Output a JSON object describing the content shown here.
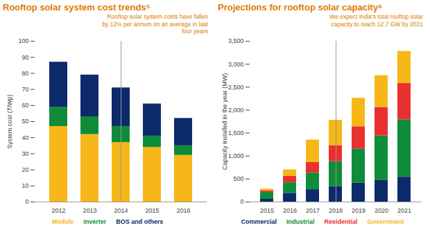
{
  "chart_data": [
    {
      "type": "bar",
      "title": "Rooftop solar system cost trends⁵",
      "annotation": "Rooftop solar system costs have fallen by 12% per annum on an average in last four years",
      "y_label": "System cost (₹/Wp)",
      "categories": [
        "2012",
        "2013",
        "2014",
        "2015",
        "2016"
      ],
      "series": [
        {
          "name": "Module",
          "color": "#f7b718",
          "values": [
            47,
            42,
            37,
            34,
            29
          ]
        },
        {
          "name": "Inverter",
          "color": "#0e8c3a",
          "values": [
            12,
            11,
            10,
            7,
            6
          ]
        },
        {
          "name": "BOS and others",
          "color": "#0d2a6b",
          "values": [
            28,
            26,
            24,
            20,
            17
          ]
        }
      ],
      "stacked": true,
      "ylim": [
        0,
        100
      ],
      "yticks": [
        0,
        10,
        20,
        30,
        40,
        50,
        60,
        70,
        80,
        90,
        100
      ],
      "grid": false,
      "legend": "bottom"
    },
    {
      "type": "bar",
      "title": "Projections for rooftop solar capacity⁶",
      "annotation": "We expect India's total rooftop solar capacity to reach 12.7 GW by 2021",
      "y_label": "Capacity installed in the year (MW)",
      "categories": [
        "2015",
        "2016",
        "2017",
        "2018",
        "2019",
        "2020",
        "2021"
      ],
      "series": [
        {
          "name": "Commercial",
          "color": "#0d2a6b",
          "values": [
            60,
            190,
            270,
            340,
            410,
            470,
            540
          ]
        },
        {
          "name": "Industrial",
          "color": "#0e8c3a",
          "values": [
            150,
            230,
            360,
            540,
            740,
            970,
            1250
          ]
        },
        {
          "name": "Residential",
          "color": "#e8312f",
          "values": [
            30,
            140,
            230,
            350,
            490,
            620,
            790
          ]
        },
        {
          "name": "Government",
          "color": "#f7b718",
          "values": [
            40,
            140,
            490,
            550,
            620,
            690,
            700
          ]
        }
      ],
      "stacked": true,
      "ylim": [
        0,
        3500
      ],
      "yticks": [
        0,
        500,
        {
          "value": 1000,
          "label": "1,000"
        },
        {
          "value": 1500,
          "label": "1,500"
        },
        {
          "value": 2000,
          "label": "2,000"
        },
        {
          "value": 2500,
          "label": "2,500"
        },
        {
          "value": 3000,
          "label": "3,000"
        },
        {
          "value": 3500,
          "label": "3,500"
        }
      ],
      "grid": false,
      "legend": "bottom"
    }
  ]
}
